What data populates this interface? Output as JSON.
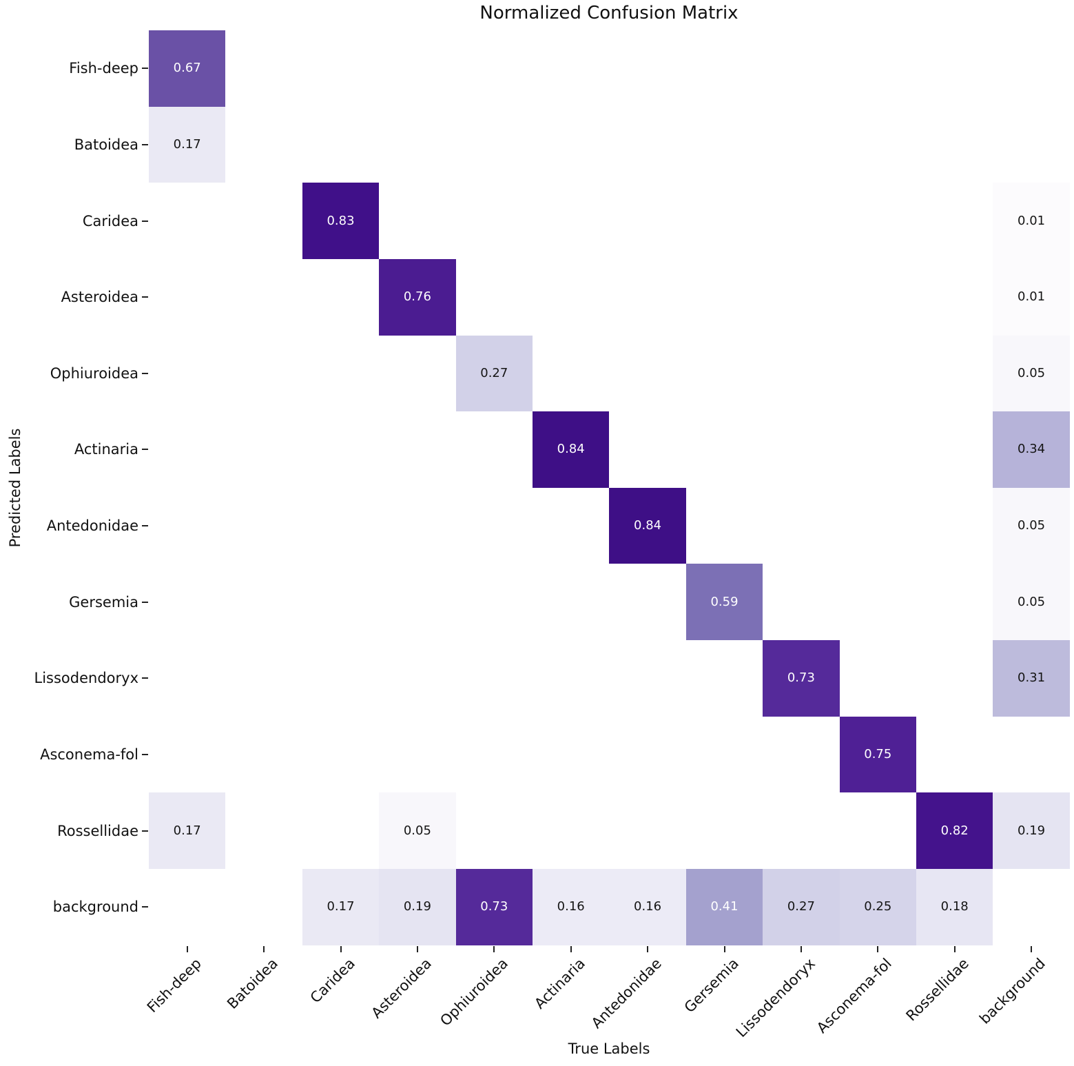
{
  "chart_data": {
    "type": "heatmap",
    "title": "Normalized Confusion Matrix",
    "xlabel": "True Labels",
    "ylabel": "Predicted Labels",
    "colormap": "Purples",
    "value_range": [
      0,
      1
    ],
    "x_tick_rotation": 45,
    "grid": "off",
    "legend_position": "none",
    "x_categories": [
      "Fish-deep",
      "Batoidea",
      "Caridea",
      "Asteroidea",
      "Ophiuroidea",
      "Actinaria",
      "Antedonidae",
      "Gersemia",
      "Lissodendoryx",
      "Asconema-fol",
      "Rossellidae",
      "background"
    ],
    "y_categories": [
      "Fish-deep",
      "Batoidea",
      "Caridea",
      "Asteroidea",
      "Ophiuroidea",
      "Actinaria",
      "Antedonidae",
      "Gersemia",
      "Lissodendoryx",
      "Asconema-fol",
      "Rossellidae",
      "background"
    ],
    "empty_cell_color": "#ffffff",
    "cells": [
      {
        "r": 0,
        "c": 0,
        "pred": "Fish-deep",
        "true": "Fish-deep",
        "value": "0.67",
        "bg": "#6a51a6",
        "fg": "#ffffff"
      },
      {
        "r": 1,
        "c": 0,
        "pred": "Batoidea",
        "true": "Fish-deep",
        "value": "0.17",
        "bg": "#eae9f4",
        "fg": "#151515"
      },
      {
        "r": 2,
        "c": 2,
        "pred": "Caridea",
        "true": "Caridea",
        "value": "0.83",
        "bg": "#401089",
        "fg": "#ffffff"
      },
      {
        "r": 2,
        "c": 11,
        "pred": "Caridea",
        "true": "background",
        "value": "0.01",
        "bg": "#fcfbfd",
        "fg": "#151515"
      },
      {
        "r": 3,
        "c": 3,
        "pred": "Asteroidea",
        "true": "Asteroidea",
        "value": "0.76",
        "bg": "#4b1c91",
        "fg": "#ffffff"
      },
      {
        "r": 3,
        "c": 11,
        "pred": "Asteroidea",
        "true": "background",
        "value": "0.01",
        "bg": "#fcfbfd",
        "fg": "#151515"
      },
      {
        "r": 4,
        "c": 4,
        "pred": "Ophiuroidea",
        "true": "Ophiuroidea",
        "value": "0.27",
        "bg": "#d2d1e8",
        "fg": "#151515"
      },
      {
        "r": 4,
        "c": 11,
        "pred": "Ophiuroidea",
        "true": "background",
        "value": "0.05",
        "bg": "#f8f7fb",
        "fg": "#151515"
      },
      {
        "r": 5,
        "c": 5,
        "pred": "Actinaria",
        "true": "Actinaria",
        "value": "0.84",
        "bg": "#3e0f86",
        "fg": "#ffffff"
      },
      {
        "r": 5,
        "c": 11,
        "pred": "Actinaria",
        "true": "background",
        "value": "0.34",
        "bg": "#b6b3d9",
        "fg": "#151515"
      },
      {
        "r": 6,
        "c": 6,
        "pred": "Antedonidae",
        "true": "Antedonidae",
        "value": "0.84",
        "bg": "#3e0f86",
        "fg": "#ffffff"
      },
      {
        "r": 6,
        "c": 11,
        "pred": "Antedonidae",
        "true": "background",
        "value": "0.05",
        "bg": "#f8f7fb",
        "fg": "#151515"
      },
      {
        "r": 7,
        "c": 7,
        "pred": "Gersemia",
        "true": "Gersemia",
        "value": "0.59",
        "bg": "#7c70b5",
        "fg": "#ffffff"
      },
      {
        "r": 7,
        "c": 11,
        "pred": "Gersemia",
        "true": "background",
        "value": "0.05",
        "bg": "#f8f7fb",
        "fg": "#151515"
      },
      {
        "r": 8,
        "c": 8,
        "pred": "Lissodendoryx",
        "true": "Lissodendoryx",
        "value": "0.73",
        "bg": "#552a9a",
        "fg": "#ffffff"
      },
      {
        "r": 8,
        "c": 11,
        "pred": "Lissodendoryx",
        "true": "background",
        "value": "0.31",
        "bg": "#bdbbdc",
        "fg": "#151515"
      },
      {
        "r": 9,
        "c": 9,
        "pred": "Asconema-fol",
        "true": "Asconema-fol",
        "value": "0.75",
        "bg": "#4f2095",
        "fg": "#ffffff"
      },
      {
        "r": 10,
        "c": 0,
        "pred": "Rossellidae",
        "true": "Fish-deep",
        "value": "0.17",
        "bg": "#eae9f4",
        "fg": "#151515"
      },
      {
        "r": 10,
        "c": 3,
        "pred": "Rossellidae",
        "true": "Asteroidea",
        "value": "0.05",
        "bg": "#f8f7fb",
        "fg": "#151515"
      },
      {
        "r": 10,
        "c": 10,
        "pred": "Rossellidae",
        "true": "Rossellidae",
        "value": "0.82",
        "bg": "#44138c",
        "fg": "#ffffff"
      },
      {
        "r": 10,
        "c": 11,
        "pred": "Rossellidae",
        "true": "background",
        "value": "0.19",
        "bg": "#e5e4f2",
        "fg": "#151515"
      },
      {
        "r": 11,
        "c": 2,
        "pred": "background",
        "true": "Caridea",
        "value": "0.17",
        "bg": "#eae9f4",
        "fg": "#151515"
      },
      {
        "r": 11,
        "c": 3,
        "pred": "background",
        "true": "Asteroidea",
        "value": "0.19",
        "bg": "#e5e4f2",
        "fg": "#151515"
      },
      {
        "r": 11,
        "c": 4,
        "pred": "background",
        "true": "Ophiuroidea",
        "value": "0.73",
        "bg": "#552a9a",
        "fg": "#ffffff"
      },
      {
        "r": 11,
        "c": 5,
        "pred": "background",
        "true": "Actinaria",
        "value": "0.16",
        "bg": "#ecebf6",
        "fg": "#151515"
      },
      {
        "r": 11,
        "c": 6,
        "pred": "background",
        "true": "Antedonidae",
        "value": "0.16",
        "bg": "#ecebf6",
        "fg": "#151515"
      },
      {
        "r": 11,
        "c": 7,
        "pred": "background",
        "true": "Gersemia",
        "value": "0.41",
        "bg": "#a4a1ce",
        "fg": "#ffffff"
      },
      {
        "r": 11,
        "c": 8,
        "pred": "background",
        "true": "Lissodendoryx",
        "value": "0.27",
        "bg": "#d2d1e8",
        "fg": "#151515"
      },
      {
        "r": 11,
        "c": 9,
        "pred": "background",
        "true": "Asconema-fol",
        "value": "0.25",
        "bg": "#d5d4ea",
        "fg": "#151515"
      },
      {
        "r": 11,
        "c": 10,
        "pred": "background",
        "true": "Rossellidae",
        "value": "0.18",
        "bg": "#e7e6f3",
        "fg": "#151515"
      }
    ]
  }
}
